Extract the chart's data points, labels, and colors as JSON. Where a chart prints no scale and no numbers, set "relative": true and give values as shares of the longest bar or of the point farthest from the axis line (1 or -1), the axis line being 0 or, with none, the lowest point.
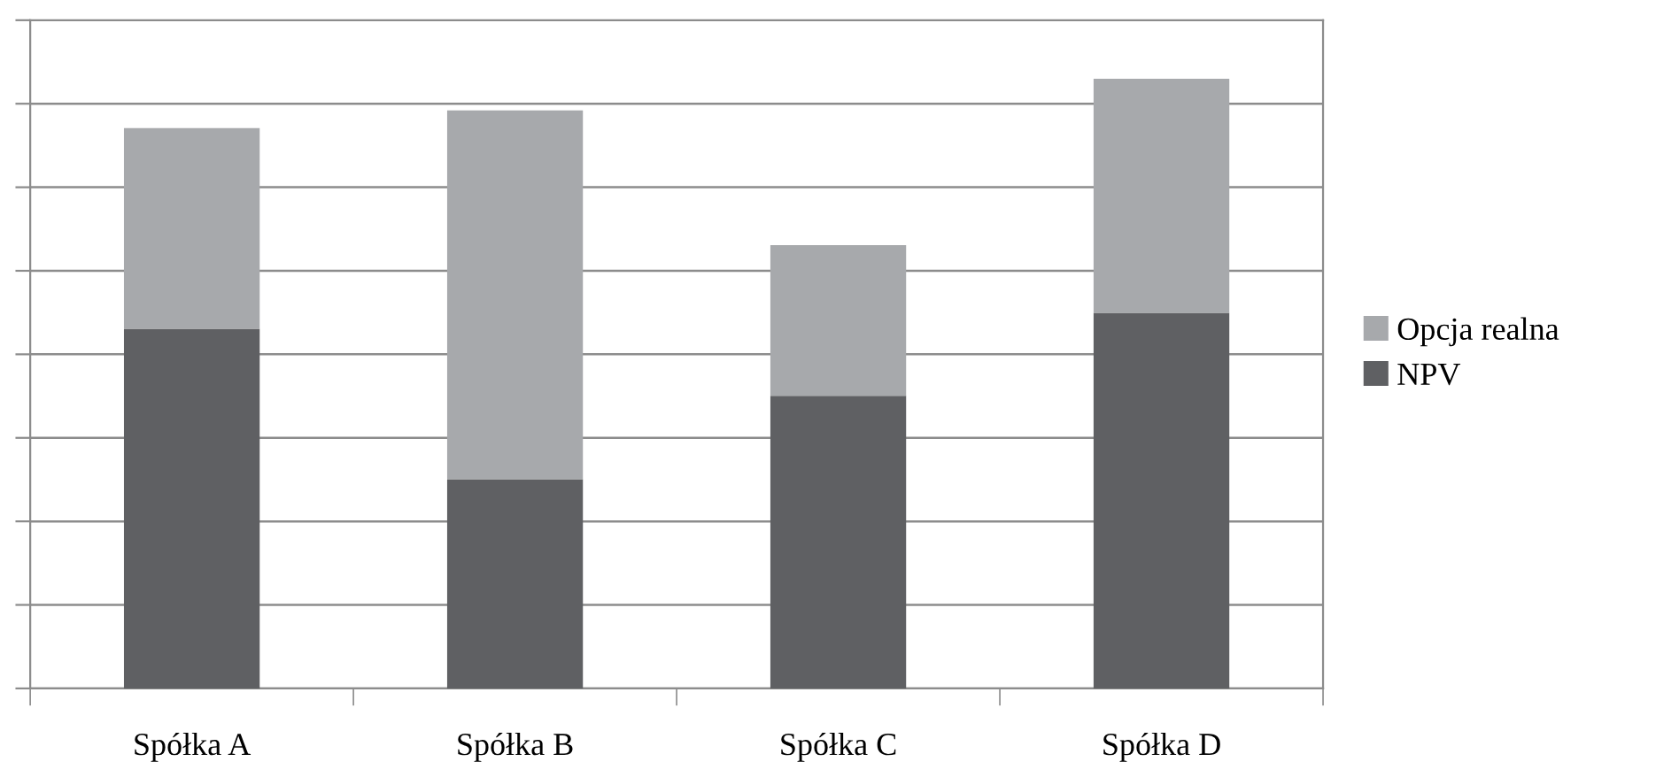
{
  "chart_data": {
    "type": "bar",
    "relative": true,
    "stacked": true,
    "categories": [
      "Spółka A",
      "Spółka B",
      "Spółka C",
      "Spółka D"
    ],
    "series": [
      {
        "name": "NPV",
        "color": "#5f6063",
        "values": [
          0.59,
          0.343,
          0.48,
          0.616
        ]
      },
      {
        "name": "Opcja realna",
        "color": "#a7a9ac",
        "values": [
          0.329,
          0.605,
          0.247,
          0.384
        ]
      }
    ],
    "grid": "y",
    "legend": "right"
  }
}
